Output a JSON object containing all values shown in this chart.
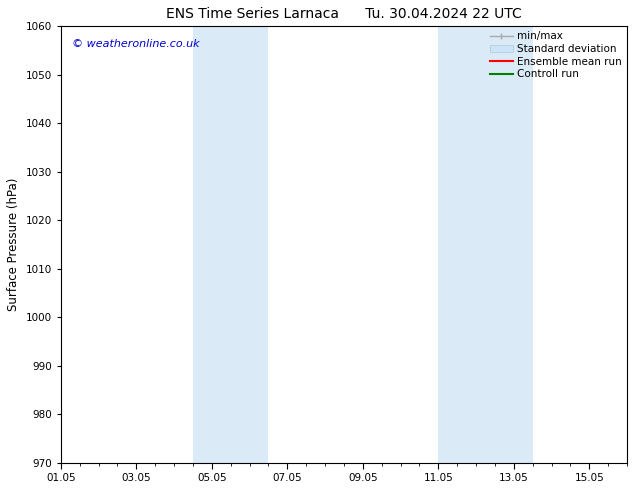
{
  "title": "ENS Time Series Larnaca      Tu. 30.04.2024 22 UTC",
  "ylabel": "Surface Pressure (hPa)",
  "ylim": [
    970,
    1060
  ],
  "yticks": [
    970,
    980,
    990,
    1000,
    1010,
    1020,
    1030,
    1040,
    1050,
    1060
  ],
  "xlim": [
    0,
    15
  ],
  "xtick_labels": [
    "01.05",
    "03.05",
    "05.05",
    "07.05",
    "09.05",
    "11.05",
    "13.05",
    "15.05"
  ],
  "xtick_positions": [
    0,
    2,
    4,
    6,
    8,
    10,
    12,
    14
  ],
  "shaded_regions": [
    {
      "x_start": 3.5,
      "x_end": 5.5
    },
    {
      "x_start": 10.0,
      "x_end": 12.5
    }
  ],
  "shaded_color": "#daeaf7",
  "watermark_text": "© weatheronline.co.uk",
  "watermark_color": "#0000cc",
  "bg_color": "#ffffff",
  "tick_label_size": 7.5,
  "axis_label_size": 8.5,
  "title_size": 10,
  "legend_fontsize": 7.5
}
